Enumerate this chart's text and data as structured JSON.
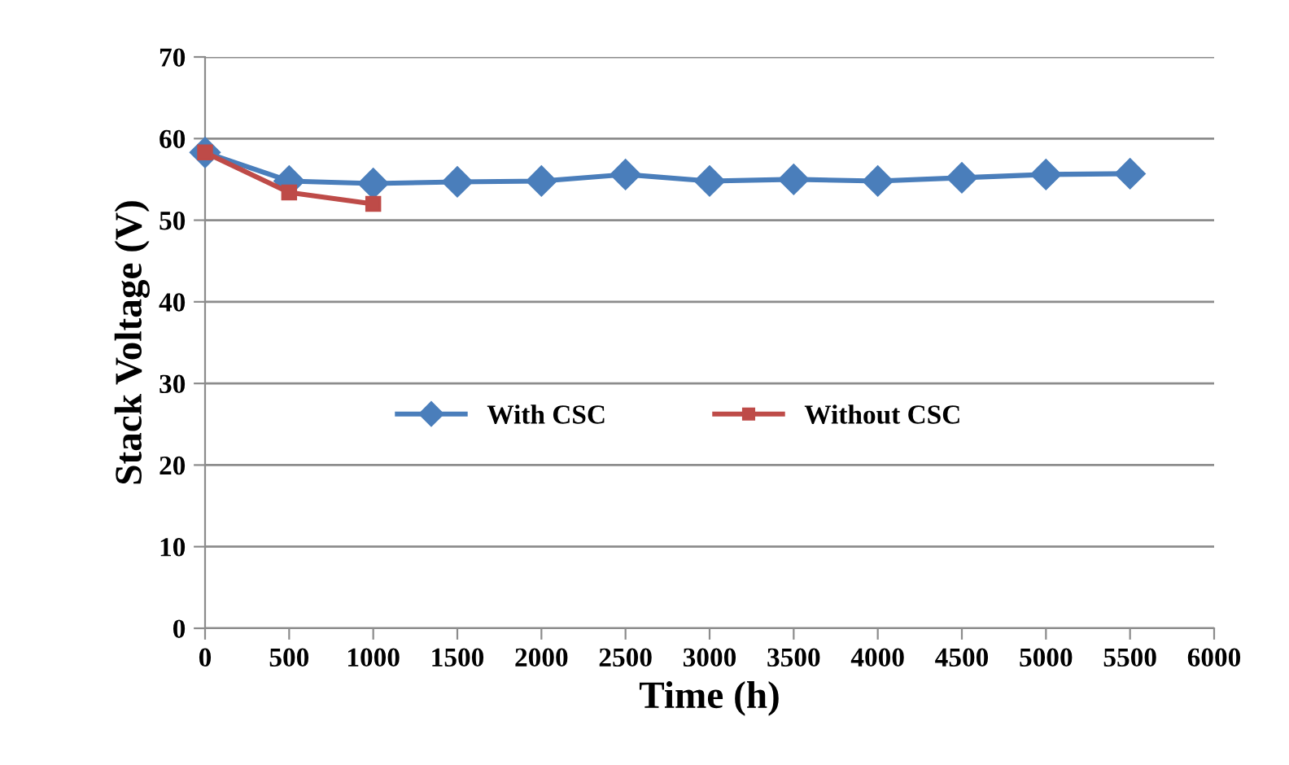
{
  "chart_data": {
    "type": "line",
    "xlabel": "Time (h)",
    "ylabel": "Stack Voltage (V)",
    "xlim": [
      0,
      6000
    ],
    "xticks": [
      0,
      500,
      1000,
      1500,
      2000,
      2500,
      3000,
      3500,
      4000,
      4500,
      5000,
      5500,
      6000
    ],
    "ylim": [
      0,
      70
    ],
    "yticks": [
      0,
      10,
      20,
      30,
      40,
      50,
      60,
      70
    ],
    "grid": "y",
    "legend": "center",
    "series": [
      {
        "name": "With CSC",
        "color": "#4a7ebb",
        "marker": "diamond",
        "x": [
          0,
          500,
          1000,
          1500,
          2000,
          2500,
          3000,
          3500,
          4000,
          4500,
          5000,
          5500
        ],
        "values": [
          58.3,
          54.8,
          54.5,
          54.7,
          54.8,
          55.6,
          54.8,
          55.0,
          54.8,
          55.2,
          55.6,
          55.7
        ]
      },
      {
        "name": "Without CSC",
        "color": "#be4b48",
        "marker": "square",
        "x": [
          0,
          500,
          1000
        ],
        "values": [
          58.3,
          53.4,
          52.0
        ]
      }
    ]
  }
}
